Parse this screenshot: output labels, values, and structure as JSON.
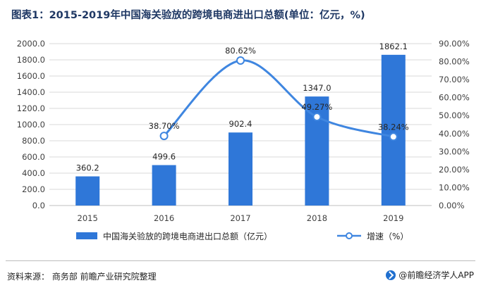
{
  "header": {
    "title": "图表1：2015-2019年中国海关验放的跨境电商进出口总额(单位：亿元，%)"
  },
  "chart_data": {
    "type": "bar",
    "categories": [
      "2015",
      "2016",
      "2017",
      "2018",
      "2019"
    ],
    "series": [
      {
        "name": "中国海关验放的跨境电商进出口总额（亿元）",
        "type": "bar",
        "axis": "left",
        "values": [
          360.2,
          499.6,
          902.4,
          1347.0,
          1862.1
        ],
        "labels": [
          "360.2",
          "499.6",
          "902.4",
          "1347.0",
          "1862.1"
        ],
        "color": "#2f77d8"
      },
      {
        "name": "增速（%）",
        "type": "line",
        "axis": "right",
        "x": [
          "2016",
          "2017",
          "2018",
          "2019"
        ],
        "values": [
          38.7,
          80.62,
          49.27,
          38.24
        ],
        "labels": [
          "38.70%",
          "80.62%",
          "49.27%",
          "38.24%"
        ],
        "color": "#3f86e0"
      }
    ],
    "y_left": {
      "lim": [
        0,
        2000
      ],
      "ticks": [
        0,
        200,
        400,
        600,
        800,
        1000,
        1200,
        1400,
        1600,
        1800,
        2000
      ],
      "tick_labels": [
        "0.0",
        "200.0",
        "400.0",
        "600.0",
        "800.0",
        "1000.0",
        "1200.0",
        "1400.0",
        "1600.0",
        "1800.0",
        "2000.0"
      ]
    },
    "y_right": {
      "lim": [
        0,
        90
      ],
      "ticks": [
        0,
        10,
        20,
        30,
        40,
        50,
        60,
        70,
        80,
        90
      ],
      "tick_labels": [
        "0.00%",
        "10.00%",
        "20.00%",
        "30.00%",
        "40.00%",
        "50.00%",
        "60.00%",
        "70.00%",
        "80.00%",
        "90.00%"
      ]
    },
    "grid": true,
    "legend_position": "bottom"
  },
  "footer": {
    "source": "资料来源：  商务部 前瞻产业研究院整理",
    "brand": "@前瞻经济学人APP"
  },
  "colors": {
    "title": "#1f3864",
    "bar": "#2f77d8",
    "line": "#3f86e0",
    "grid": "#d9d9d9"
  }
}
